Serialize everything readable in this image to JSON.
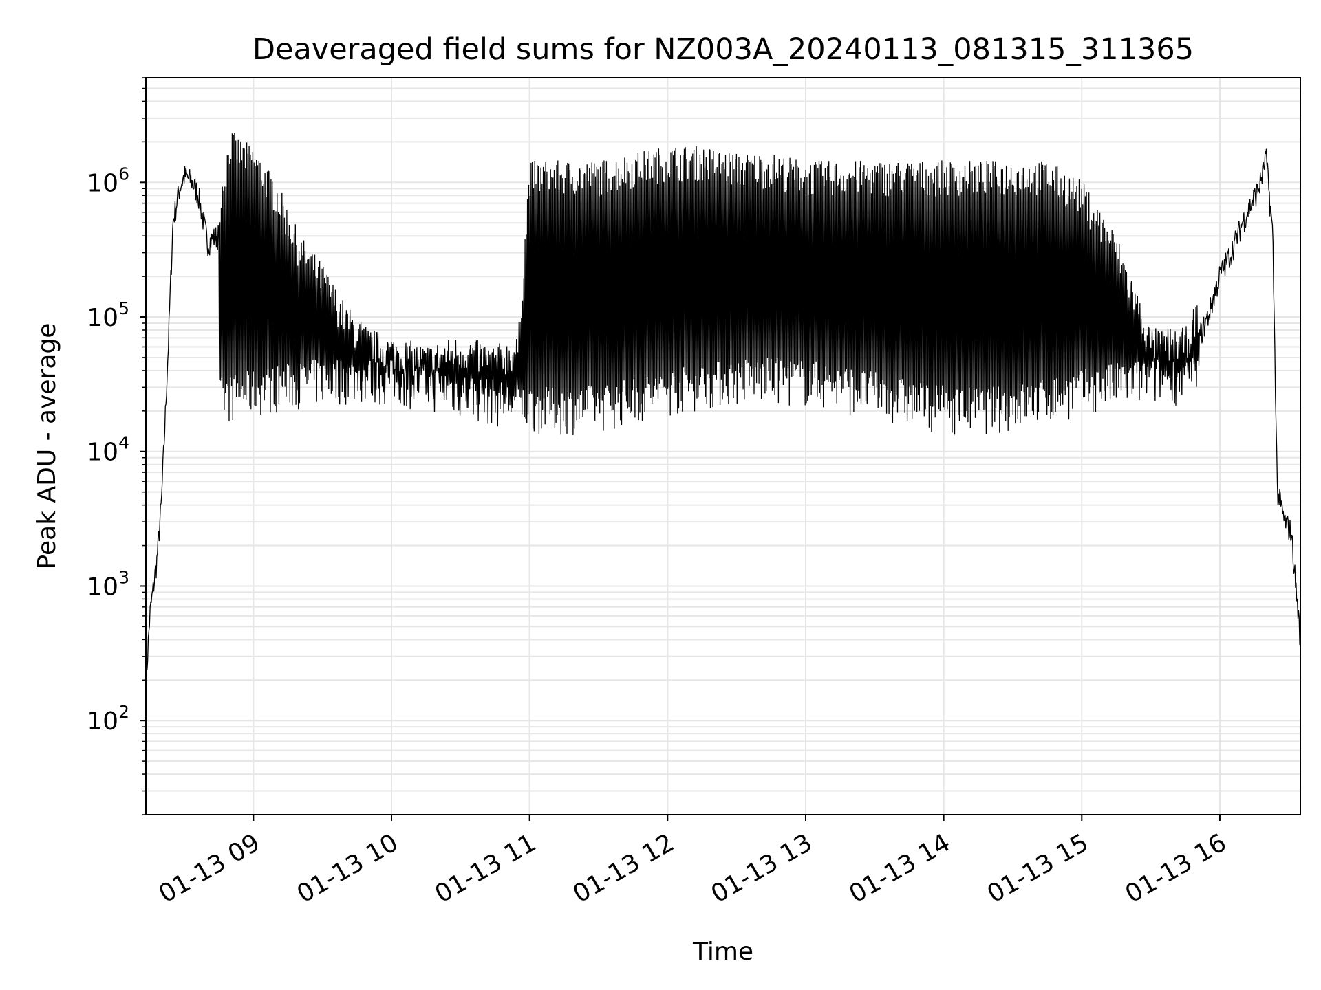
{
  "chart_data": {
    "type": "line",
    "title": "Deaveraged field sums for NZ003A_20240113_081315_311365",
    "xlabel": "Time",
    "ylabel": "Peak ADU - average",
    "y_scale": "log",
    "ylim": [
      20,
      6000000
    ],
    "xlim": [
      "2024-01-13 08:13:15",
      "2024-01-13 16:35:00"
    ],
    "x_ticks": [
      {
        "t": "2024-01-13 09:00",
        "label": "01-13 09"
      },
      {
        "t": "2024-01-13 10:00",
        "label": "01-13 10"
      },
      {
        "t": "2024-01-13 11:00",
        "label": "01-13 11"
      },
      {
        "t": "2024-01-13 12:00",
        "label": "01-13 12"
      },
      {
        "t": "2024-01-13 13:00",
        "label": "01-13 13"
      },
      {
        "t": "2024-01-13 14:00",
        "label": "01-13 14"
      },
      {
        "t": "2024-01-13 15:00",
        "label": "01-13 15"
      },
      {
        "t": "2024-01-13 16:00",
        "label": "01-13 16"
      }
    ],
    "y_ticks": [
      {
        "value": 100,
        "base": "10",
        "exp": "2"
      },
      {
        "value": 1000,
        "base": "10",
        "exp": "3"
      },
      {
        "value": 10000,
        "base": "10",
        "exp": "4"
      },
      {
        "value": 100000,
        "base": "10",
        "exp": "5"
      },
      {
        "value": 1000000,
        "base": "10",
        "exp": "6"
      }
    ],
    "grid": true,
    "line_color": "#000000",
    "grid_color": "#e6e6e6",
    "series": [
      {
        "x": [
          "08:13",
          "08:15",
          "08:18",
          "08:20",
          "08:23",
          "08:25",
          "08:28",
          "08:30",
          "08:33",
          "08:36",
          "08:40",
          "08:45",
          "08:50",
          "08:55",
          "09:00",
          "09:10",
          "09:20",
          "09:30",
          "09:40",
          "09:50",
          "10:00",
          "10:15",
          "10:30",
          "10:45",
          "10:55",
          "11:00",
          "11:15",
          "11:30",
          "11:45",
          "12:00",
          "12:15",
          "12:30",
          "12:45",
          "13:00",
          "13:15",
          "13:30",
          "13:45",
          "14:00",
          "14:15",
          "14:30",
          "14:45",
          "15:00",
          "15:15",
          "15:30",
          "15:45",
          "15:55",
          "16:00",
          "16:05",
          "16:10",
          "16:14",
          "16:17",
          "16:19",
          "16:20",
          "16:21",
          "16:23",
          "16:25",
          "16:28",
          "16:31",
          "16:35"
        ],
        "y": [
          150,
          600,
          1500,
          4000,
          60000,
          500000,
          900000,
          1100000,
          1000000,
          800000,
          350000,
          400000,
          1200000,
          1000000,
          900000,
          500000,
          200000,
          120000,
          60000,
          40000,
          35000,
          30000,
          35000,
          30000,
          35000,
          700000,
          700000,
          700000,
          800000,
          900000,
          900000,
          800000,
          800000,
          700000,
          700000,
          700000,
          700000,
          700000,
          700000,
          700000,
          700000,
          500000,
          200000,
          40000,
          40000,
          100000,
          200000,
          300000,
          500000,
          700000,
          900000,
          1200000,
          1600000,
          1000000,
          400000,
          5000,
          3000,
          2500,
          400
        ]
      }
    ]
  }
}
